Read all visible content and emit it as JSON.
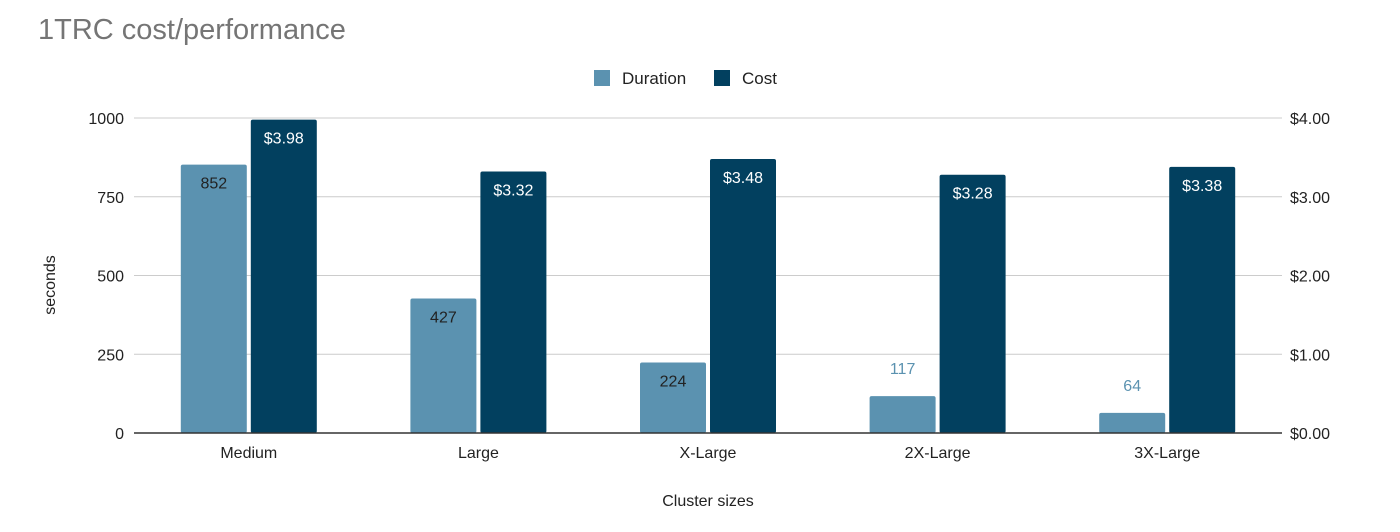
{
  "chart_data": {
    "type": "bar",
    "title": "1TRC cost/performance",
    "categories": [
      "Medium",
      "Large",
      "X-Large",
      "2X-Large",
      "3X-Large"
    ],
    "series": [
      {
        "name": "Duration",
        "values": [
          852,
          427,
          224,
          117,
          64
        ],
        "labels": [
          "852",
          "427",
          "224",
          "117",
          "64"
        ],
        "axis": "left",
        "color": "#5b92b0"
      },
      {
        "name": "Cost",
        "values": [
          3.98,
          3.32,
          3.48,
          3.28,
          3.38
        ],
        "labels": [
          "$3.98",
          "$3.32",
          "$3.48",
          "$3.28",
          "$3.38"
        ],
        "axis": "right",
        "color": "#02405f"
      }
    ],
    "xlabel": "Cluster sizes",
    "ylabel": "seconds",
    "ylim": [
      0,
      1000
    ],
    "y2lim": [
      0,
      4
    ],
    "yticks": [
      "0",
      "250",
      "500",
      "750",
      "1000"
    ],
    "y2ticks": [
      "$0.00",
      "$1.00",
      "$2.00",
      "$3.00",
      "$4.00"
    ],
    "grid": true,
    "legend_position": "top-center",
    "label_colors": {
      "dark_text": "#222222",
      "light_text": "#ffffff",
      "outside_text": "#5b92b0"
    }
  }
}
